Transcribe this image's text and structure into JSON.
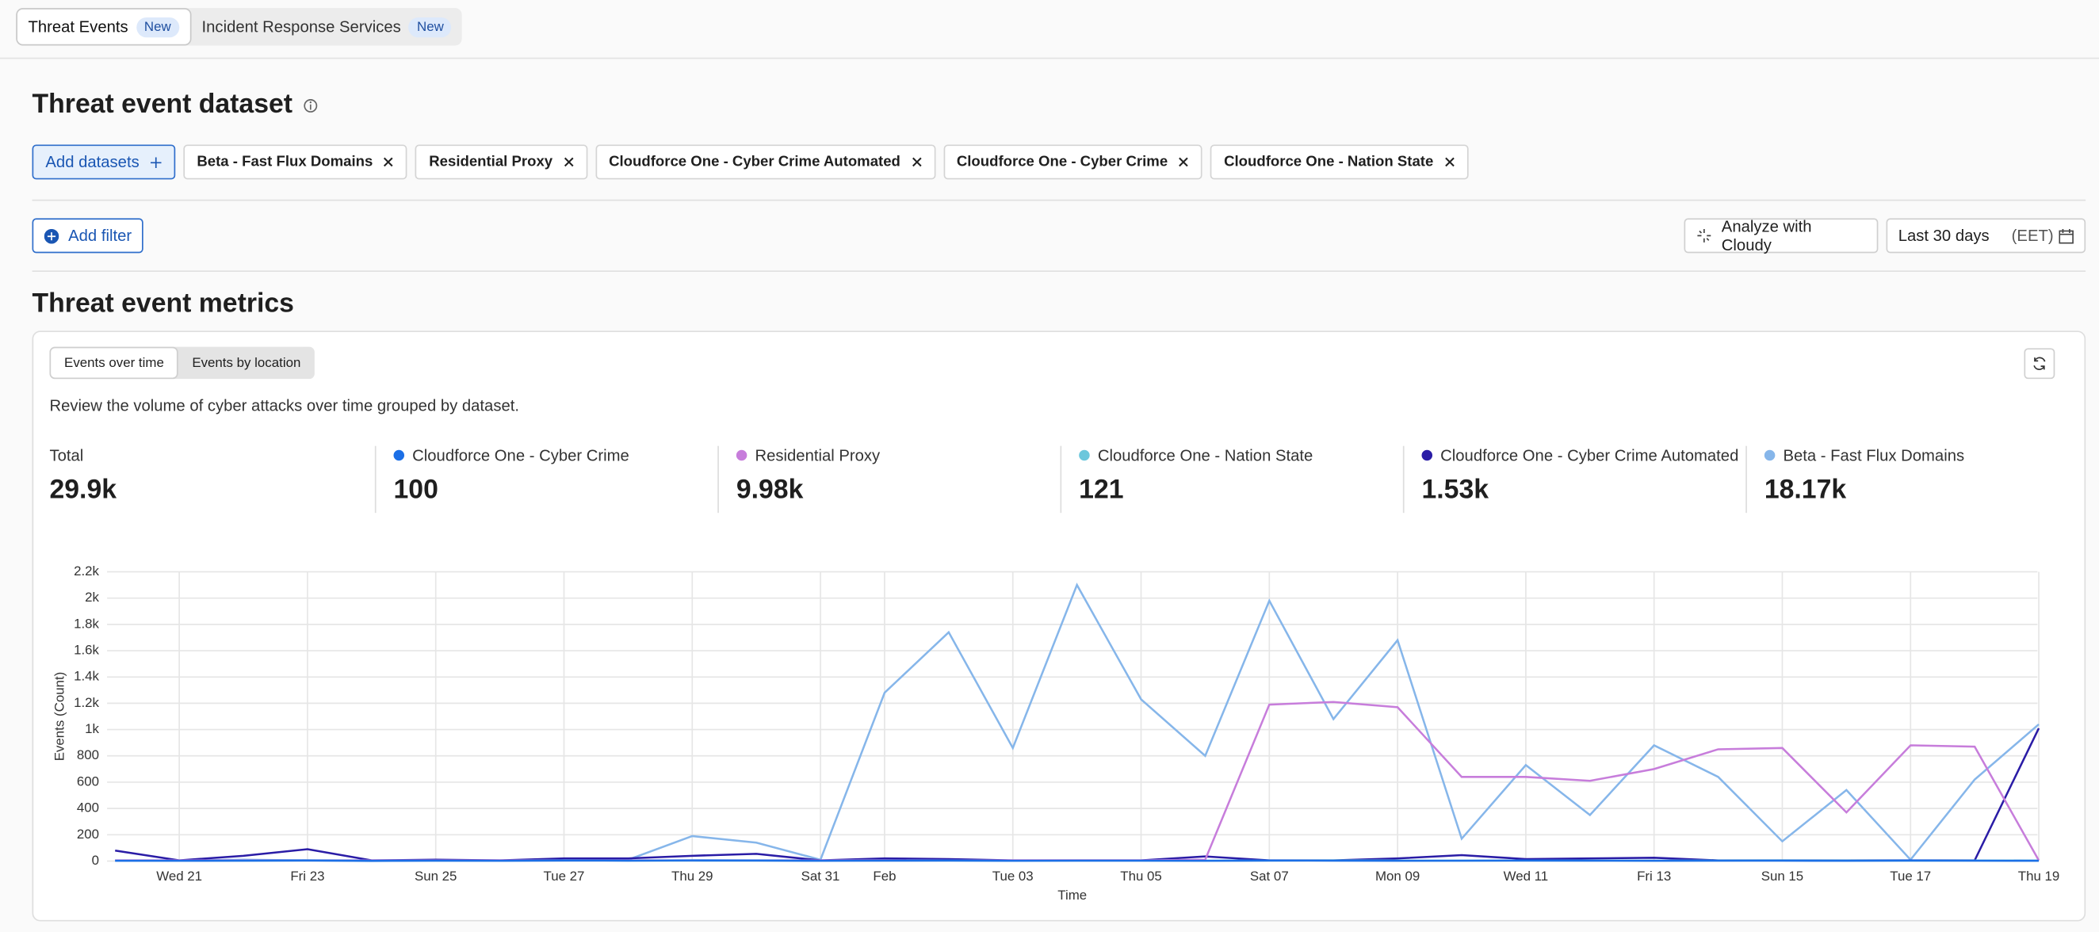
{
  "tabs": [
    {
      "label": "Threat Events",
      "badge": "New"
    },
    {
      "label": "Incident Response Services",
      "badge": "New"
    }
  ],
  "dataset": {
    "title": "Threat event dataset",
    "add_button": "Add datasets",
    "chips": [
      "Beta - Fast Flux Domains",
      "Residential Proxy",
      "Cloudforce One - Cyber Crime Automated",
      "Cloudforce One - Cyber Crime",
      "Cloudforce One - Nation State"
    ]
  },
  "toolbar": {
    "add_filter": "Add filter",
    "analyze": "Analyze with Cloudy",
    "date_range": "Last 30 days",
    "timezone": "(EET)"
  },
  "metrics": {
    "title": "Threat event metrics",
    "views": [
      "Events over time",
      "Events by location"
    ],
    "description": "Review the volume of cyber attacks over time grouped by dataset.",
    "total_label": "Total",
    "totals": [
      "29.9k",
      "100",
      "9.98k",
      "121",
      "1.53k",
      "18.17k"
    ]
  },
  "chart_data": {
    "type": "line",
    "x_label": "Time",
    "y_label": "Events (Count)",
    "categories": [
      null,
      "Wed 21",
      null,
      "Fri 23",
      null,
      "Sun 25",
      null,
      "Tue 27",
      null,
      "Thu 29",
      null,
      "Sat 31",
      "Feb",
      null,
      "Tue 03",
      null,
      "Thu 05",
      null,
      "Sat 07",
      null,
      "Mon 09",
      null,
      "Wed 11",
      null,
      "Fri 13",
      null,
      "Sun 15",
      null,
      "Tue 17",
      null,
      "Thu 19"
    ],
    "series": [
      {
        "name": "Cloudforce One - Cyber Crime",
        "color": "#1b6fe6",
        "values": [
          2,
          2,
          3,
          4,
          2,
          3,
          2,
          4,
          3,
          5,
          4,
          2,
          3,
          4,
          2,
          3,
          3,
          2,
          4,
          3,
          2,
          3,
          4,
          3,
          2,
          3,
          3,
          2,
          4,
          3,
          2
        ]
      },
      {
        "name": "Residential Proxy",
        "color": "#c77ddb",
        "values": [
          5,
          5,
          5,
          5,
          5,
          5,
          5,
          5,
          5,
          5,
          5,
          5,
          5,
          5,
          5,
          5,
          5,
          10,
          1190,
          1210,
          1170,
          640,
          640,
          610,
          700,
          850,
          860,
          370,
          880,
          870,
          5
        ]
      },
      {
        "name": "Cloudforce One - Nation State",
        "color": "#6cc7dc",
        "values": [
          4,
          4,
          3,
          5,
          4,
          3,
          4,
          5,
          4,
          3,
          4,
          4,
          5,
          4,
          3,
          4,
          4,
          3,
          4,
          5,
          4,
          3,
          4,
          4,
          3,
          4,
          5,
          4,
          3,
          4,
          4
        ]
      },
      {
        "name": "Cloudforce One - Cyber Crime Automated",
        "color": "#2a1ca6",
        "values": [
          80,
          5,
          40,
          90,
          5,
          10,
          5,
          20,
          20,
          40,
          55,
          5,
          20,
          15,
          5,
          5,
          5,
          35,
          5,
          5,
          20,
          45,
          15,
          20,
          25,
          5,
          5,
          5,
          5,
          5,
          1010
        ]
      },
      {
        "name": "Beta - Fast Flux Domains",
        "color": "#86b6ea",
        "values": [
          5,
          5,
          10,
          5,
          0,
          5,
          5,
          5,
          10,
          190,
          140,
          10,
          1280,
          1740,
          860,
          2100,
          1230,
          800,
          1980,
          1080,
          1680,
          170,
          730,
          350,
          880,
          640,
          150,
          540,
          10,
          620,
          1040
        ]
      }
    ],
    "ylim": [
      0,
      2200
    ],
    "yticks": [
      0,
      200,
      400,
      600,
      800,
      {
        "value": 1000,
        "label": "1k"
      },
      {
        "value": 1200,
        "label": "1.2k"
      },
      {
        "value": 1400,
        "label": "1.4k"
      },
      {
        "value": 1600,
        "label": "1.6k"
      },
      {
        "value": 1800,
        "label": "1.8k"
      },
      {
        "value": 2000,
        "label": "2k"
      },
      {
        "value": 2200,
        "label": "2.2k"
      }
    ],
    "grid": true
  }
}
